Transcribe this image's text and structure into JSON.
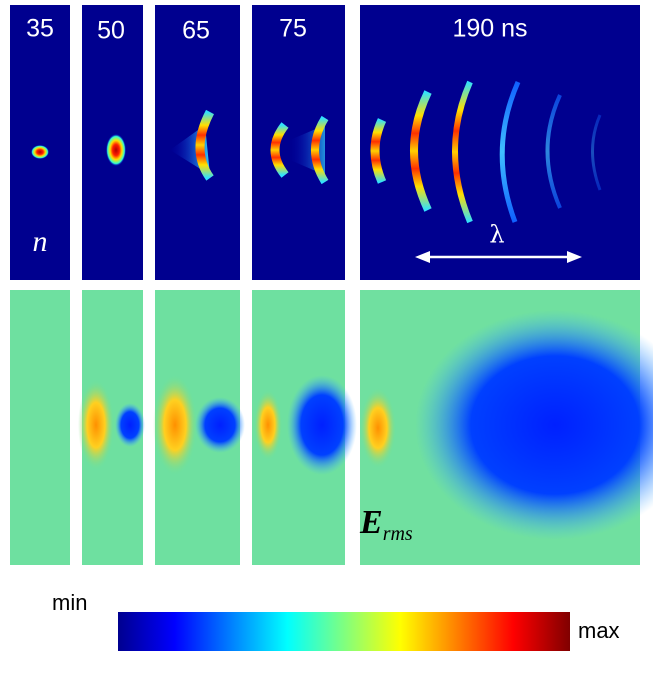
{
  "panels": [
    {
      "label": "35"
    },
    {
      "label": "50"
    },
    {
      "label": "65"
    },
    {
      "label": "75"
    },
    {
      "label": "190 ns"
    }
  ],
  "top_row": {
    "symbol": "n",
    "wavelength_label": "λ"
  },
  "bottom_row": {
    "symbol": "E",
    "symbol_subscript": "rms"
  },
  "colorbar": {
    "min_label": "min",
    "max_label": "max"
  }
}
